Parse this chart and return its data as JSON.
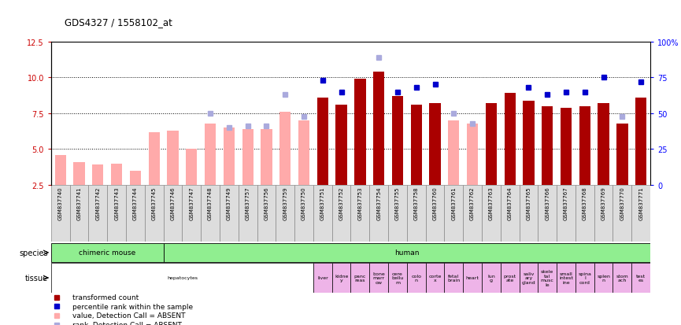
{
  "title": "GDS4327 / 1558102_at",
  "samples": [
    "GSM837740",
    "GSM837741",
    "GSM837742",
    "GSM837743",
    "GSM837744",
    "GSM837745",
    "GSM837746",
    "GSM837747",
    "GSM837748",
    "GSM837749",
    "GSM837757",
    "GSM837756",
    "GSM837759",
    "GSM837750",
    "GSM837751",
    "GSM837752",
    "GSM837753",
    "GSM837754",
    "GSM837755",
    "GSM837758",
    "GSM837760",
    "GSM837761",
    "GSM837762",
    "GSM837763",
    "GSM837764",
    "GSM837765",
    "GSM837766",
    "GSM837767",
    "GSM837768",
    "GSM837769",
    "GSM837770",
    "GSM837771"
  ],
  "bar_values": [
    4.6,
    4.1,
    3.9,
    4.0,
    3.5,
    6.2,
    6.3,
    5.0,
    6.8,
    6.5,
    6.4,
    6.4,
    7.6,
    7.0,
    8.6,
    8.1,
    9.9,
    10.4,
    8.7,
    8.1,
    8.2,
    7.0,
    6.8,
    8.2,
    8.9,
    8.4,
    8.0,
    7.9,
    8.0,
    8.2,
    6.8,
    8.6
  ],
  "bar_absent": [
    true,
    true,
    true,
    true,
    true,
    true,
    true,
    true,
    true,
    true,
    true,
    true,
    true,
    true,
    false,
    false,
    false,
    false,
    false,
    false,
    false,
    true,
    true,
    false,
    false,
    false,
    false,
    false,
    false,
    false,
    false,
    false
  ],
  "percentile_values_pct": [
    null,
    null,
    null,
    null,
    null,
    null,
    null,
    null,
    null,
    null,
    null,
    null,
    null,
    null,
    73,
    65,
    null,
    null,
    65,
    68,
    70,
    null,
    null,
    null,
    null,
    68,
    63,
    65,
    65,
    75,
    null,
    72
  ],
  "percentile_absent_pct": [
    null,
    null,
    null,
    null,
    null,
    null,
    null,
    null,
    50,
    40,
    41,
    41,
    63,
    48,
    null,
    null,
    null,
    89,
    null,
    null,
    null,
    50,
    43,
    null,
    null,
    null,
    null,
    null,
    null,
    null,
    48,
    null
  ],
  "ylim_left": [
    2.5,
    12.5
  ],
  "ylim_right": [
    0,
    100
  ],
  "yticks_left": [
    2.5,
    5.0,
    7.5,
    10.0,
    12.5
  ],
  "yticks_right": [
    0,
    25,
    50,
    75,
    100
  ],
  "bar_color_present": "#AA0000",
  "bar_color_absent": "#FFAAAA",
  "dot_color_present": "#0000CC",
  "dot_color_absent": "#AAAADD",
  "bg_gray": "#DDDDDD",
  "species_data": [
    {
      "label": "chimeric mouse",
      "start": 0,
      "end": 5
    },
    {
      "label": "human",
      "start": 6,
      "end": 31
    }
  ],
  "tissue_data": [
    {
      "label": "hepatocytes",
      "start": 0,
      "end": 13
    },
    {
      "label": "liver",
      "start": 14,
      "end": 14
    },
    {
      "label": "kidne\ny",
      "start": 15,
      "end": 15
    },
    {
      "label": "panc\nreas",
      "start": 16,
      "end": 16
    },
    {
      "label": "bone\nmarr\now",
      "start": 17,
      "end": 17
    },
    {
      "label": "cere\nbellu\nm",
      "start": 18,
      "end": 18
    },
    {
      "label": "colo\nn",
      "start": 19,
      "end": 19
    },
    {
      "label": "corte\nx",
      "start": 20,
      "end": 20
    },
    {
      "label": "fetal\nbrain",
      "start": 21,
      "end": 21
    },
    {
      "label": "heart",
      "start": 22,
      "end": 22
    },
    {
      "label": "lun\ng",
      "start": 23,
      "end": 23
    },
    {
      "label": "prost\nate",
      "start": 24,
      "end": 24
    },
    {
      "label": "saliv\nary\ngland",
      "start": 25,
      "end": 25
    },
    {
      "label": "skele\ntal\nmusc\nle",
      "start": 26,
      "end": 26
    },
    {
      "label": "small\nintest\nine",
      "start": 27,
      "end": 27
    },
    {
      "label": "spina\nl\ncord",
      "start": 28,
      "end": 28
    },
    {
      "label": "splen\nn",
      "start": 29,
      "end": 29
    },
    {
      "label": "stom\nach",
      "start": 30,
      "end": 30
    },
    {
      "label": "test\nes",
      "start": 31,
      "end": 31
    }
  ],
  "tissue_color": "#EEB4E8",
  "species_color": "#90EE90"
}
